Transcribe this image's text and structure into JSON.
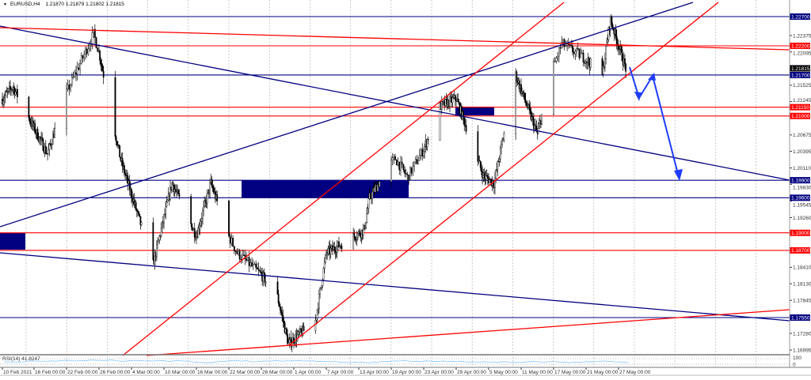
{
  "header": {
    "symbol": "EURUSD,H4",
    "ohlc": "1.21870 1.21879 1.21802 1.21815",
    "arrow_icon": "triangle-down-icon"
  },
  "chart_data": {
    "type": "candlestick",
    "symbol": "EURUSD",
    "timeframe": "H4",
    "ylim": [
      1.1685,
      1.231
    ],
    "x_tick_labels": [
      "10 Feb 2021",
      "16 Feb 00:00",
      "22 Feb 00:00",
      "26 Feb 00:00",
      "4 Mar 00:00",
      "10 Mar 00:00",
      "16 Mar 00:00",
      "22 Mar 00:00",
      "26 Mar 00:00",
      "1 Apr 00:00",
      "7 Apr 00:00",
      "13 Apr 00:00",
      "19 Apr 00:00",
      "23 Apr 00:00",
      "29 Apr 00:00",
      "5 May 00:00",
      "11 May 00:00",
      "17 May 00:00",
      "21 May 00:00",
      "27 May 00:00"
    ],
    "x_tick_dates": [
      "2021-02-10",
      "2021-02-16",
      "2021-02-22",
      "2021-02-26",
      "2021-03-04",
      "2021-03-10",
      "2021-03-16",
      "2021-03-22",
      "2021-03-26",
      "2021-04-01",
      "2021-04-07",
      "2021-04-13",
      "2021-04-19",
      "2021-04-23",
      "2021-04-29",
      "2021-05-05",
      "2021-05-11",
      "2021-05-17",
      "2021-05-21",
      "2021-05-27"
    ],
    "y_tick_labels": [
      "1.22375",
      "1.22095",
      "1.21525",
      "1.21245",
      "1.20675",
      "1.20395",
      "1.20110",
      "1.19830",
      "1.19545",
      "1.19260",
      "1.18410",
      "1.18130",
      "1.17845",
      "1.17280",
      "1.16995"
    ],
    "price_path": [
      [
        "2021-02-10T00:00",
        1.2129
      ],
      [
        "2021-02-12T00:00",
        1.215
      ],
      [
        "2021-02-18T12:00",
        1.2035
      ],
      [
        "2021-02-25T08:00",
        1.224
      ],
      [
        "2021-03-02T00:00",
        1.2025
      ],
      [
        "2021-03-08T00:00",
        1.1846
      ],
      [
        "2021-03-11T12:00",
        1.1985
      ],
      [
        "2021-03-16T00:00",
        1.1895
      ],
      [
        "2021-03-18T16:00",
        1.1985
      ],
      [
        "2021-03-23T00:00",
        1.1866
      ],
      [
        "2021-03-29T00:00",
        1.179
      ],
      [
        "2021-03-31T00:00",
        1.171
      ],
      [
        "2021-04-05T00:00",
        1.175
      ],
      [
        "2021-04-07T00:00",
        1.1865
      ],
      [
        "2021-04-14T00:00",
        1.1905
      ],
      [
        "2021-04-15T00:00",
        1.196
      ],
      [
        "2021-04-19T12:00",
        1.2027
      ],
      [
        "2021-04-21T00:00",
        1.1995
      ],
      [
        "2021-04-26T00:00",
        1.2116
      ],
      [
        "2021-04-29T00:00",
        1.213
      ],
      [
        "2021-05-04T00:00",
        1.1998
      ],
      [
        "2021-05-06T00:00",
        1.1985
      ],
      [
        "2021-05-10T00:00",
        1.217
      ],
      [
        "2021-05-14T00:00",
        1.2069
      ],
      [
        "2021-05-18T00:00",
        1.2224
      ],
      [
        "2021-05-24T00:00",
        1.217
      ],
      [
        "2021-05-25T12:00",
        1.2265
      ],
      [
        "2021-05-28T08:00",
        1.21815
      ]
    ],
    "horizontal_levels": [
      {
        "price": 1.227,
        "label": "1.22700",
        "color": "#000080"
      },
      {
        "price": 1.222,
        "label": "1.22200",
        "color": "#ff0000"
      },
      {
        "price": 1.217,
        "label": "1.21700",
        "color": "#000080"
      },
      {
        "price": 1.2115,
        "label": "1.21150",
        "color": "#ff0000"
      },
      {
        "price": 1.21,
        "label": "1.21000",
        "color": "#ff0000"
      },
      {
        "price": 1.199,
        "label": "1.19900",
        "color": "#000080"
      },
      {
        "price": 1.196,
        "label": "1.19600",
        "color": "#000080"
      },
      {
        "price": 1.19,
        "label": "1.19000",
        "color": "#ff0000"
      },
      {
        "price": 1.187,
        "label": "1.18700",
        "color": "#ff0000"
      },
      {
        "price": 1.1755,
        "label": "1.17550",
        "color": "#000080"
      }
    ],
    "current_price": {
      "price": 1.21815,
      "label": "1.21815"
    },
    "indicator": {
      "name": "RSI(14) 41.8247",
      "levels": [
        "100",
        "0"
      ],
      "color": "#87c3f5"
    },
    "grid": true,
    "colors": {
      "support_resistance_blue": "#000080",
      "trend_red": "#ff0000",
      "forecast_arrow": "#1e3cff",
      "candles": "#000000"
    }
  }
}
